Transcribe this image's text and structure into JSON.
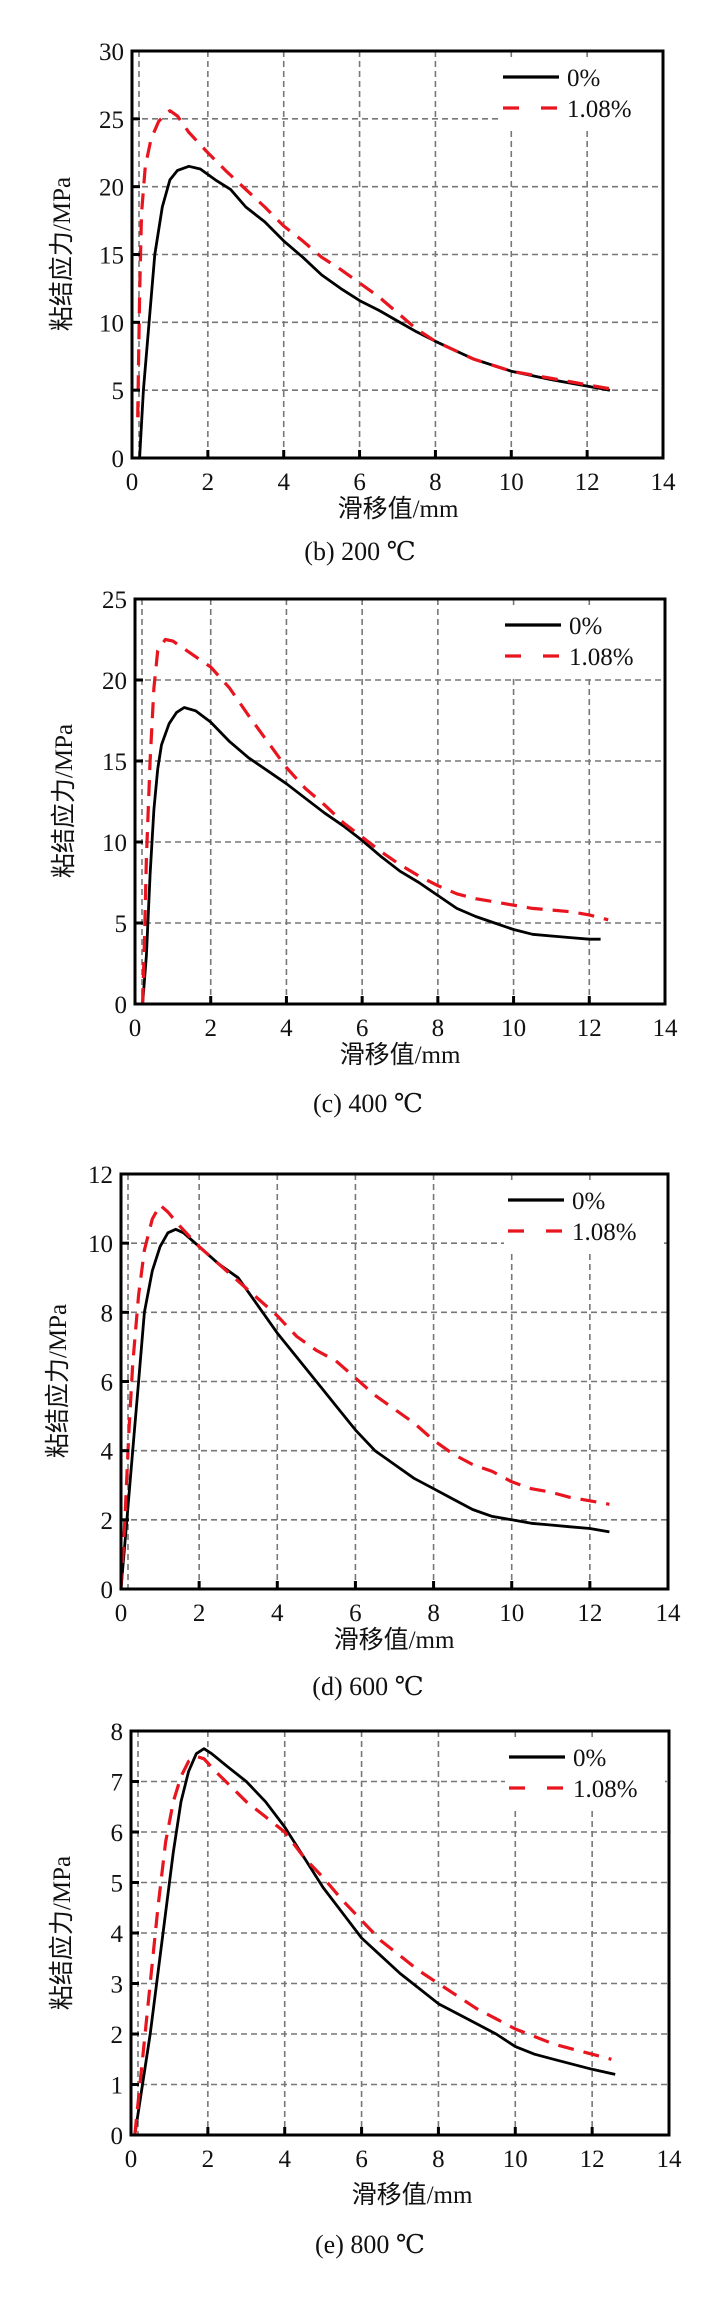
{
  "chart_data": [
    {
      "type": "line",
      "panel": "b",
      "title": "(b) 200 ℃",
      "xlabel": "滑移值/mm",
      "ylabel": "粘结应力/MPa",
      "xlim": [
        0,
        14
      ],
      "ylim": [
        0,
        30
      ],
      "xticks": [
        0,
        2,
        4,
        6,
        8,
        10,
        12,
        14
      ],
      "yticks": [
        0,
        5,
        10,
        15,
        20,
        25,
        30
      ],
      "grid": true,
      "legend_position": "top-right",
      "series": [
        {
          "name": "0%",
          "style": "solid",
          "color": "#000000",
          "x": [
            0.2,
            0.3,
            0.45,
            0.6,
            0.8,
            1.0,
            1.2,
            1.5,
            1.8,
            2.2,
            2.6,
            3.0,
            3.5,
            4.0,
            4.5,
            5.0,
            5.5,
            6.0,
            6.5,
            7.0,
            7.5,
            8.0,
            9.0,
            10.0,
            11.0,
            12.0,
            12.6
          ],
          "y": [
            0,
            5,
            10,
            15,
            18.5,
            20.5,
            21.2,
            21.5,
            21.3,
            20.5,
            19.8,
            18.5,
            17.4,
            16.0,
            14.8,
            13.5,
            12.5,
            11.6,
            10.9,
            10.1,
            9.3,
            8.6,
            7.3,
            6.4,
            5.8,
            5.3,
            5.0
          ]
        },
        {
          "name": "1.08%",
          "style": "dashed",
          "color": "#e8141e",
          "x": [
            0.15,
            0.2,
            0.25,
            0.35,
            0.5,
            0.7,
            0.9,
            1.0,
            1.2,
            1.5,
            2.0,
            2.5,
            3.0,
            3.5,
            4.0,
            4.5,
            5.0,
            5.5,
            6.0,
            6.5,
            7.0,
            7.5,
            8.0,
            9.0,
            10.0,
            11.0,
            12.0,
            12.6
          ],
          "y": [
            3,
            12,
            18,
            21.5,
            23.5,
            24.8,
            25.4,
            25.6,
            25.2,
            24.0,
            22.5,
            21.1,
            19.8,
            18.5,
            17.1,
            16.0,
            14.8,
            13.9,
            12.9,
            11.9,
            10.7,
            9.5,
            8.6,
            7.3,
            6.4,
            5.9,
            5.4,
            5.1
          ]
        }
      ]
    },
    {
      "type": "line",
      "panel": "c",
      "title": "(c) 400 ℃",
      "xlabel": "滑移值/mm",
      "ylabel": "粘结应力/MPa",
      "xlim": [
        0,
        14
      ],
      "ylim": [
        0,
        25
      ],
      "xticks": [
        0,
        2,
        4,
        6,
        8,
        10,
        12,
        14
      ],
      "yticks": [
        0,
        5,
        10,
        15,
        20,
        25
      ],
      "grid": true,
      "legend_position": "top-right",
      "series": [
        {
          "name": "0%",
          "style": "solid",
          "color": "#000000",
          "x": [
            0.2,
            0.3,
            0.4,
            0.5,
            0.6,
            0.7,
            0.9,
            1.1,
            1.3,
            1.6,
            2.0,
            2.5,
            3.0,
            3.5,
            4.0,
            4.5,
            5.0,
            5.5,
            6.0,
            6.5,
            7.0,
            7.5,
            8.0,
            8.5,
            9.0,
            9.5,
            10.0,
            10.5,
            11.0,
            11.5,
            12.0,
            12.3
          ],
          "y": [
            0,
            3,
            8,
            12,
            14.5,
            16.0,
            17.3,
            18.0,
            18.3,
            18.1,
            17.4,
            16.2,
            15.2,
            14.4,
            13.6,
            12.7,
            11.8,
            11.0,
            10.1,
            9.1,
            8.2,
            7.5,
            6.7,
            5.9,
            5.4,
            5.0,
            4.6,
            4.3,
            4.2,
            4.1,
            4.0,
            4.0
          ]
        },
        {
          "name": "1.08%",
          "style": "dashed",
          "color": "#e8141e",
          "x": [
            0.2,
            0.25,
            0.3,
            0.4,
            0.5,
            0.6,
            0.8,
            1.0,
            1.5,
            2.0,
            2.5,
            3.0,
            3.5,
            4.0,
            4.5,
            5.0,
            5.5,
            6.0,
            6.5,
            7.0,
            7.5,
            8.0,
            8.5,
            9.0,
            9.5,
            10.0,
            10.5,
            11.0,
            11.5,
            12.0,
            12.5
          ],
          "y": [
            0,
            4,
            9,
            15,
            19.5,
            21.8,
            22.5,
            22.4,
            21.6,
            20.8,
            19.5,
            17.8,
            16.2,
            14.6,
            13.3,
            12.3,
            11.2,
            10.3,
            9.4,
            8.6,
            7.9,
            7.3,
            6.8,
            6.5,
            6.3,
            6.1,
            5.9,
            5.8,
            5.7,
            5.5,
            5.2
          ]
        }
      ]
    },
    {
      "type": "line",
      "panel": "d",
      "title": "(d) 600 ℃",
      "xlabel": "滑移值/mm",
      "ylabel": "粘结应力/MPa",
      "xlim": [
        0,
        14
      ],
      "ylim": [
        0,
        12
      ],
      "xticks": [
        0,
        2,
        4,
        6,
        8,
        10,
        12,
        14
      ],
      "yticks": [
        0,
        2,
        4,
        6,
        8,
        10,
        12
      ],
      "grid": true,
      "legend_position": "top-right",
      "series": [
        {
          "name": "0%",
          "style": "solid",
          "color": "#000000",
          "x": [
            0.0,
            0.15,
            0.3,
            0.45,
            0.6,
            0.8,
            1.0,
            1.2,
            1.4,
            1.6,
            2.0,
            2.5,
            3.0,
            3.5,
            4.0,
            4.5,
            5.0,
            5.5,
            6.0,
            6.5,
            7.0,
            7.5,
            8.0,
            8.5,
            9.0,
            9.5,
            10.0,
            10.5,
            11.0,
            11.5,
            12.0,
            12.5
          ],
          "y": [
            0,
            2.0,
            4.0,
            6.0,
            8.0,
            9.2,
            9.9,
            10.3,
            10.4,
            10.3,
            9.9,
            9.4,
            9.0,
            8.2,
            7.4,
            6.7,
            6.0,
            5.3,
            4.6,
            4.0,
            3.6,
            3.2,
            2.9,
            2.6,
            2.3,
            2.1,
            2.0,
            1.9,
            1.85,
            1.8,
            1.75,
            1.65
          ]
        },
        {
          "name": "1.08%",
          "style": "dashed",
          "color": "#e8141e",
          "x": [
            0.0,
            0.1,
            0.2,
            0.3,
            0.45,
            0.6,
            0.8,
            1.0,
            1.2,
            1.5,
            2.0,
            2.5,
            3.0,
            3.5,
            4.0,
            4.5,
            5.0,
            5.5,
            6.0,
            6.5,
            7.0,
            7.5,
            8.0,
            8.5,
            9.0,
            9.5,
            10.0,
            10.5,
            11.0,
            11.5,
            12.0,
            12.5
          ],
          "y": [
            0,
            2.0,
            4.5,
            6.5,
            8.5,
            9.8,
            10.7,
            11.1,
            10.9,
            10.5,
            9.9,
            9.4,
            8.9,
            8.4,
            7.9,
            7.3,
            6.9,
            6.6,
            6.1,
            5.6,
            5.2,
            4.8,
            4.3,
            3.9,
            3.6,
            3.4,
            3.1,
            2.9,
            2.8,
            2.65,
            2.55,
            2.45
          ]
        }
      ]
    },
    {
      "type": "line",
      "panel": "e",
      "title": "(e) 800 ℃",
      "xlabel": "滑移值/mm",
      "ylabel": "粘结应力/MPa",
      "xlim": [
        0,
        14
      ],
      "ylim": [
        0,
        8
      ],
      "xticks": [
        0,
        2,
        4,
        6,
        8,
        10,
        12,
        14
      ],
      "yticks": [
        0,
        1,
        2,
        3,
        4,
        5,
        6,
        7,
        8
      ],
      "grid": true,
      "legend_position": "top-right",
      "series": [
        {
          "name": "0%",
          "style": "solid",
          "color": "#000000",
          "x": [
            0.1,
            0.3,
            0.5,
            0.7,
            0.9,
            1.1,
            1.3,
            1.5,
            1.7,
            1.9,
            2.1,
            2.5,
            3.0,
            3.5,
            4.0,
            4.5,
            5.0,
            5.5,
            6.0,
            6.5,
            7.0,
            7.5,
            8.0,
            8.5,
            9.0,
            9.5,
            10.0,
            10.5,
            11.0,
            11.5,
            12.0,
            12.6
          ],
          "y": [
            0,
            1.0,
            2.0,
            3.2,
            4.4,
            5.6,
            6.6,
            7.2,
            7.55,
            7.65,
            7.55,
            7.3,
            7.0,
            6.6,
            6.1,
            5.5,
            4.9,
            4.4,
            3.9,
            3.55,
            3.2,
            2.9,
            2.6,
            2.4,
            2.2,
            2.0,
            1.75,
            1.6,
            1.5,
            1.4,
            1.3,
            1.2
          ]
        },
        {
          "name": "1.08%",
          "style": "dashed",
          "color": "#e8141e",
          "x": [
            0.1,
            0.3,
            0.5,
            0.7,
            0.9,
            1.1,
            1.3,
            1.5,
            1.7,
            1.9,
            2.2,
            2.6,
            3.0,
            3.5,
            4.0,
            4.5,
            5.0,
            5.5,
            6.0,
            6.5,
            7.0,
            7.5,
            8.0,
            8.5,
            9.0,
            9.5,
            10.0,
            10.5,
            11.0,
            11.5,
            12.0,
            12.5
          ],
          "y": [
            0,
            1.5,
            3.0,
            4.5,
            5.8,
            6.6,
            7.1,
            7.4,
            7.5,
            7.45,
            7.2,
            6.9,
            6.6,
            6.3,
            6.0,
            5.5,
            5.1,
            4.65,
            4.25,
            3.85,
            3.55,
            3.25,
            3.0,
            2.75,
            2.5,
            2.3,
            2.1,
            1.95,
            1.8,
            1.7,
            1.6,
            1.5
          ]
        }
      ]
    }
  ]
}
